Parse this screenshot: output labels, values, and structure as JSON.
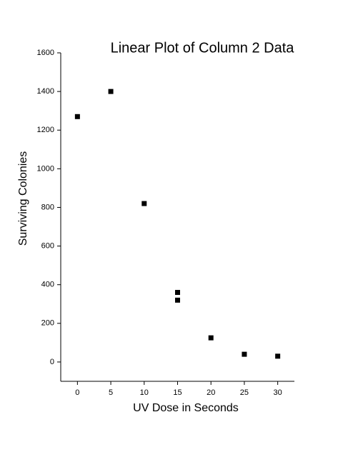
{
  "chart_data": {
    "type": "scatter",
    "title": "Linear Plot of Column 2 Data",
    "x_label": "UV Dose in Seconds",
    "y_label": "Surviving Colonies",
    "series": [
      {
        "color": "#000000",
        "x": [
          0,
          5,
          10,
          15,
          15,
          20,
          25,
          30
        ],
        "values": [
          1270,
          1400,
          820,
          360,
          320,
          125,
          40,
          30
        ]
      }
    ],
    "xlim": [
      -2.5,
      32.5
    ],
    "xticks": [
      0,
      5,
      10,
      15,
      20,
      25,
      30
    ],
    "ylim": [
      -100,
      1600
    ],
    "yticks": [
      0,
      200,
      400,
      600,
      800,
      1000,
      1200,
      1400,
      1600
    ],
    "grid": false
  }
}
